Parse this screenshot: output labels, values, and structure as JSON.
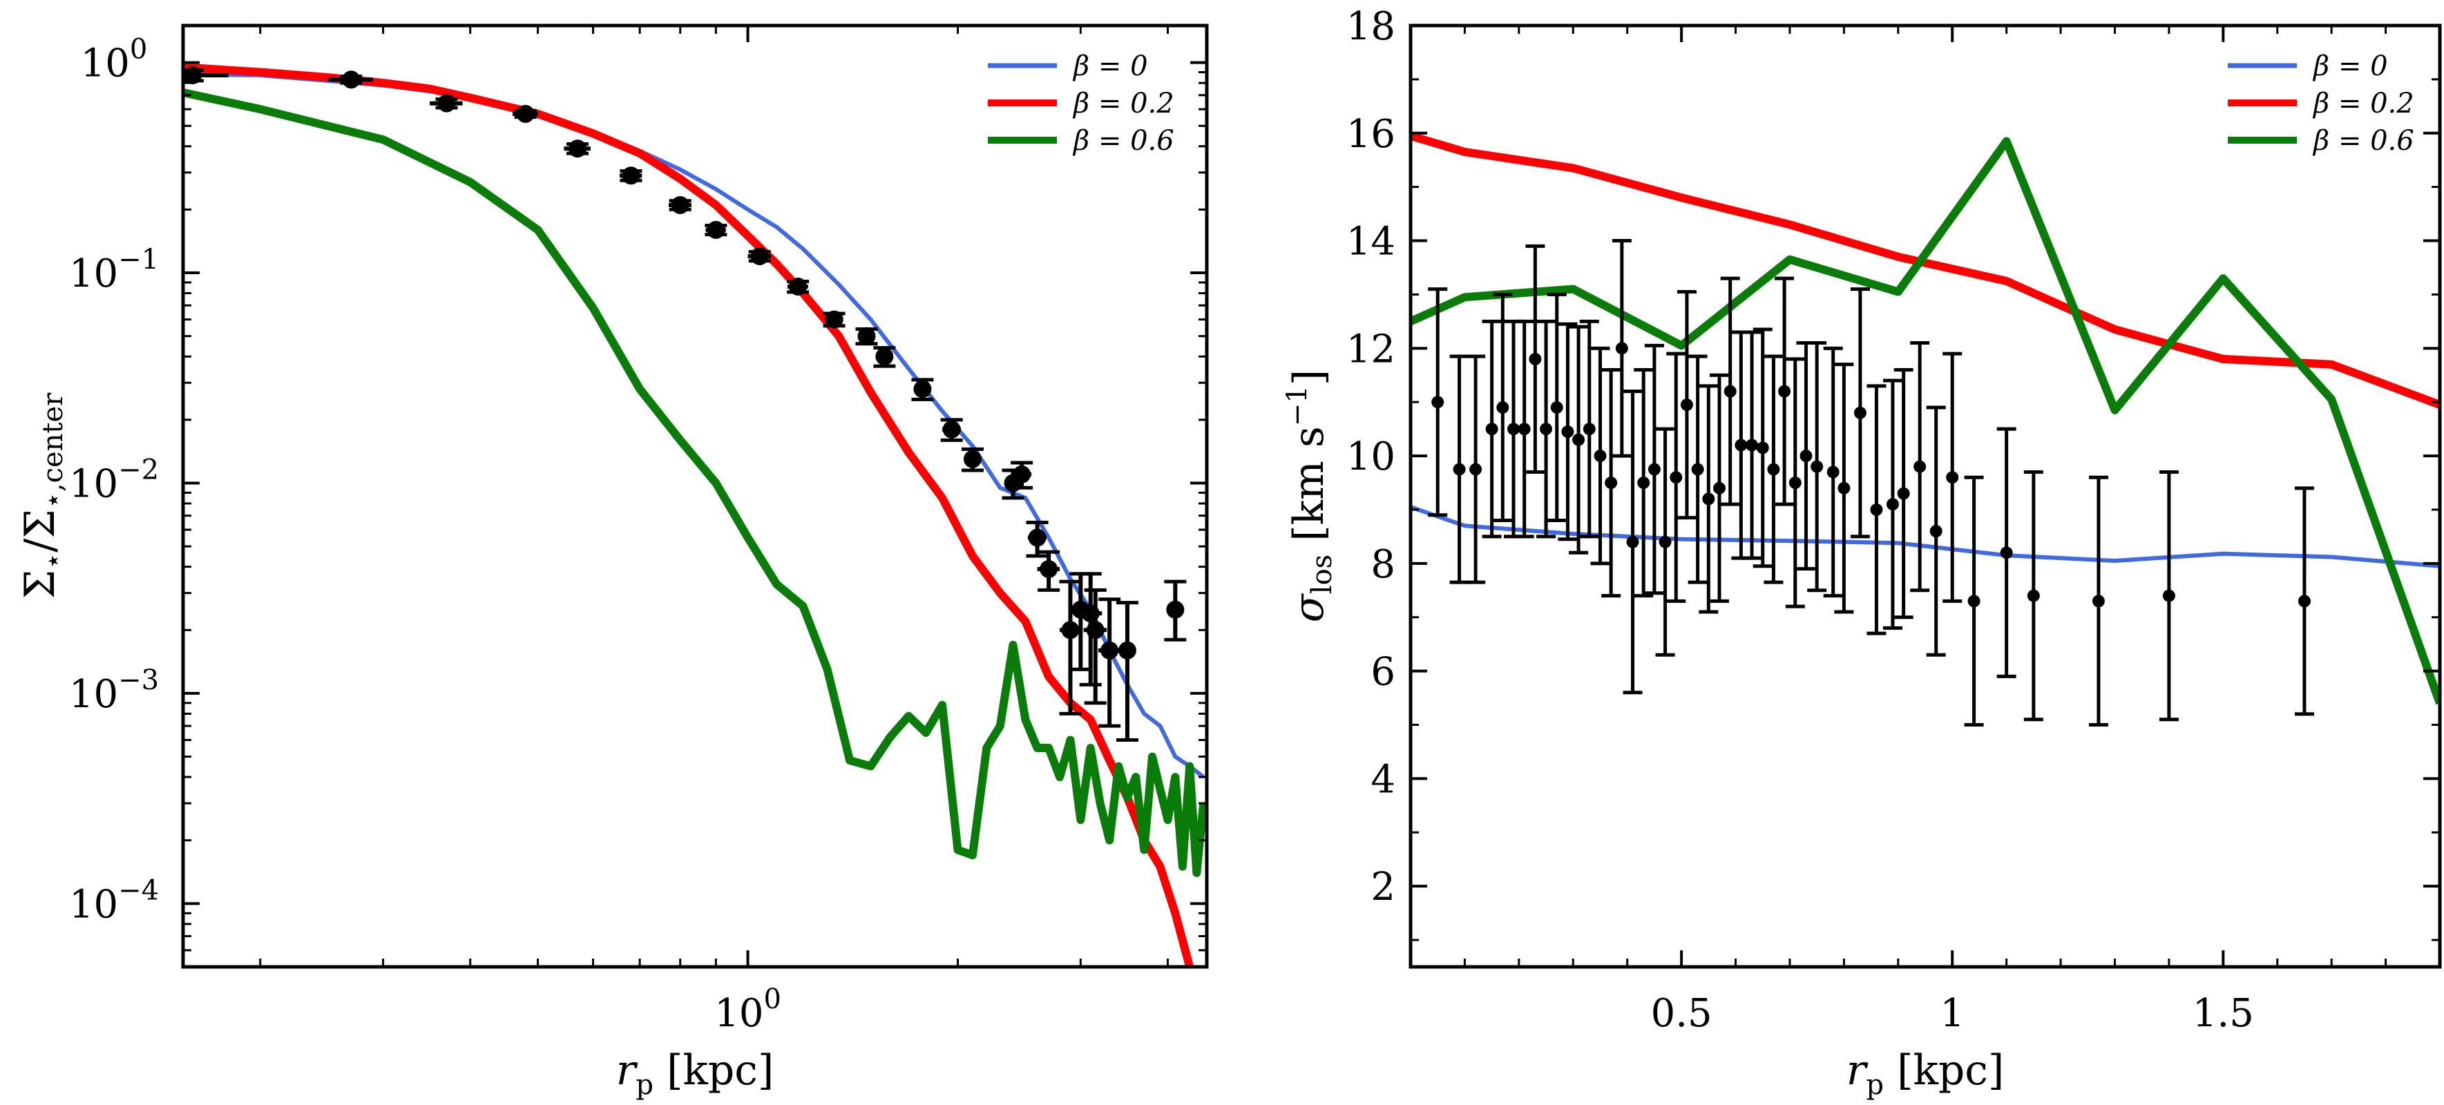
{
  "chart_data": [
    {
      "type": "line",
      "panel": "left",
      "xscale": "log",
      "yscale": "log",
      "xlim": [
        0.155,
        4.55
      ],
      "ylim": [
        5e-05,
        1.5
      ],
      "xlabel": "r_p [kpc]",
      "ylabel": "Σ⋆/Σ⋆,center",
      "xticks": [
        {
          "value": 1.0,
          "label": "10^0"
        }
      ],
      "yticks": [
        {
          "value": 0.0001,
          "label": "10^-4"
        },
        {
          "value": 0.001,
          "label": "10^-3"
        },
        {
          "value": 0.01,
          "label": "10^-2"
        },
        {
          "value": 0.1,
          "label": "10^-1"
        },
        {
          "value": 1.0,
          "label": "10^0"
        }
      ],
      "legend": {
        "position": "top-right",
        "entries": [
          {
            "label": "β = 0",
            "color": "#4169e1"
          },
          {
            "label": "β = 0.2",
            "color": "#ff0000"
          },
          {
            "label": "β = 0.6",
            "color": "#0a7c0a"
          }
        ]
      },
      "series": [
        {
          "name": "β = 0",
          "color": "#4169e1",
          "x": [
            0.155,
            0.2,
            0.3,
            0.4,
            0.5,
            0.6,
            0.7,
            0.8,
            0.9,
            1.0,
            1.1,
            1.2,
            1.35,
            1.5,
            1.7,
            1.9,
            2.1,
            2.3,
            2.5,
            2.7,
            2.9,
            3.1,
            3.3,
            3.5,
            3.7,
            3.9,
            4.1,
            4.3,
            4.5
          ],
          "y": [
            0.88,
            0.87,
            0.78,
            0.69,
            0.58,
            0.47,
            0.38,
            0.31,
            0.25,
            0.2,
            0.165,
            0.13,
            0.088,
            0.06,
            0.035,
            0.022,
            0.015,
            0.0095,
            0.0085,
            0.0055,
            0.0035,
            0.0025,
            0.0016,
            0.0011,
            0.0008,
            0.0007,
            0.0005,
            0.00045,
            0.0004
          ]
        },
        {
          "name": "β = 0.2",
          "color": "#ff0000",
          "x": [
            0.155,
            0.2,
            0.25,
            0.3,
            0.35,
            0.4,
            0.5,
            0.6,
            0.7,
            0.8,
            0.9,
            1.0,
            1.1,
            1.2,
            1.35,
            1.5,
            1.7,
            1.9,
            2.1,
            2.3,
            2.5,
            2.7,
            2.9,
            3.1,
            3.3,
            3.5,
            3.7,
            3.9,
            4.1,
            4.3
          ],
          "y": [
            0.95,
            0.9,
            0.85,
            0.8,
            0.75,
            0.68,
            0.57,
            0.46,
            0.37,
            0.28,
            0.21,
            0.15,
            0.11,
            0.08,
            0.05,
            0.027,
            0.014,
            0.0085,
            0.0045,
            0.003,
            0.0022,
            0.0012,
            0.0009,
            0.00075,
            0.00048,
            0.00032,
            0.0002,
            0.00015,
            9e-05,
            5e-05
          ]
        },
        {
          "name": "β = 0.6",
          "color": "#0a7c0a",
          "x": [
            0.155,
            0.2,
            0.3,
            0.4,
            0.5,
            0.6,
            0.7,
            0.8,
            0.9,
            1.0,
            1.1,
            1.2,
            1.3,
            1.4,
            1.5,
            1.6,
            1.7,
            1.8,
            1.9,
            2.0,
            2.1,
            2.2,
            2.3,
            2.4,
            2.5,
            2.6,
            2.7,
            2.8,
            2.9,
            3.0,
            3.1,
            3.2,
            3.3,
            3.4,
            3.5,
            3.6,
            3.7,
            3.8,
            3.9,
            4.0,
            4.1,
            4.2,
            4.3,
            4.4,
            4.5
          ],
          "y": [
            0.72,
            0.6,
            0.43,
            0.27,
            0.16,
            0.068,
            0.028,
            0.016,
            0.01,
            0.0055,
            0.0033,
            0.0026,
            0.0013,
            0.00048,
            0.00045,
            0.00062,
            0.00078,
            0.00065,
            0.00088,
            0.00018,
            0.00017,
            0.00055,
            0.0007,
            0.0017,
            0.00075,
            0.00055,
            0.00055,
            0.0004,
            0.0006,
            0.00025,
            0.00055,
            0.0003,
            0.0002,
            0.00045,
            0.00032,
            0.0004,
            0.00018,
            0.0005,
            0.00035,
            0.00025,
            0.0004,
            0.00015,
            0.00045,
            0.00014,
            0.0003
          ]
        }
      ],
      "points": {
        "x": [
          0.16,
          0.27,
          0.37,
          0.48,
          0.57,
          0.68,
          0.8,
          0.9,
          1.04,
          1.18,
          1.33,
          1.48,
          1.57,
          1.78,
          1.96,
          2.1,
          2.4,
          2.47,
          2.6,
          2.7,
          2.9,
          3.0,
          3.1,
          3.15,
          3.3,
          3.5,
          4.1
        ],
        "y": [
          0.87,
          0.83,
          0.64,
          0.57,
          0.39,
          0.29,
          0.21,
          0.16,
          0.12,
          0.086,
          0.06,
          0.05,
          0.04,
          0.028,
          0.018,
          0.013,
          0.01,
          0.011,
          0.0055,
          0.0039,
          0.002,
          0.0025,
          0.0024,
          0.002,
          0.0016,
          0.0016,
          0.0025
        ],
        "x_err": [
          0.02,
          0.02,
          0.02,
          0.02,
          0.025,
          0.025,
          0.03,
          0.03,
          0.04,
          0.04,
          0.04,
          0.04,
          0.04,
          0.05,
          0.06,
          0.05,
          0.06,
          0.08,
          0.08,
          0.1,
          0.1,
          0.1,
          0.12,
          0.12,
          0.12,
          0.1,
          0.1
        ],
        "y_err_low": [
          0.05,
          0.03,
          0.03,
          0.02,
          0.02,
          0.015,
          0.01,
          0.008,
          0.006,
          0.005,
          0.004,
          0.004,
          0.004,
          0.003,
          0.002,
          0.0015,
          0.0015,
          0.0015,
          0.001,
          0.0008,
          0.0012,
          0.0012,
          0.0013,
          0.0011,
          0.0009,
          0.001,
          0.0007
        ],
        "y_err_high": [
          0.05,
          0.03,
          0.03,
          0.02,
          0.02,
          0.015,
          0.01,
          0.008,
          0.006,
          0.005,
          0.004,
          0.004,
          0.004,
          0.003,
          0.002,
          0.0015,
          0.0015,
          0.0015,
          0.001,
          0.0008,
          0.0014,
          0.0012,
          0.0013,
          0.0011,
          0.0012,
          0.0011,
          0.0009
        ],
        "color": "#000000"
      }
    },
    {
      "type": "line",
      "panel": "right",
      "xscale": "linear",
      "yscale": "linear",
      "xlim": [
        0.0,
        1.9
      ],
      "ylim": [
        0.5,
        18.0
      ],
      "xlabel": "r_p [kpc]",
      "ylabel": "σ_los [km s^-1]",
      "xticks": [
        {
          "value": 0.5,
          "label": "0.5"
        },
        {
          "value": 1.0,
          "label": "1"
        },
        {
          "value": 1.5,
          "label": "1.5"
        }
      ],
      "yticks": [
        {
          "value": 2,
          "label": "2"
        },
        {
          "value": 4,
          "label": "4"
        },
        {
          "value": 6,
          "label": "6"
        },
        {
          "value": 8,
          "label": "8"
        },
        {
          "value": 10,
          "label": "10"
        },
        {
          "value": 12,
          "label": "12"
        },
        {
          "value": 14,
          "label": "14"
        },
        {
          "value": 16,
          "label": "16"
        },
        {
          "value": 18,
          "label": "18"
        }
      ],
      "legend": {
        "position": "top-right",
        "entries": [
          {
            "label": "β = 0",
            "color": "#4169e1"
          },
          {
            "label": "β = 0.2",
            "color": "#ff0000"
          },
          {
            "label": "β = 0.6",
            "color": "#0a7c0a"
          }
        ]
      },
      "series": [
        {
          "name": "β = 0",
          "color": "#4169e1",
          "x": [
            0.0,
            0.1,
            0.3,
            0.5,
            0.7,
            0.9,
            1.1,
            1.3,
            1.5,
            1.7,
            1.9
          ],
          "y": [
            9.05,
            8.7,
            8.55,
            8.45,
            8.42,
            8.38,
            8.15,
            8.05,
            8.18,
            8.12,
            7.95
          ]
        },
        {
          "name": "β = 0.2",
          "color": "#ff0000",
          "x": [
            0.0,
            0.1,
            0.3,
            0.5,
            0.7,
            0.9,
            1.1,
            1.3,
            1.5,
            1.7,
            1.9
          ],
          "y": [
            15.95,
            15.65,
            15.35,
            14.8,
            14.3,
            13.7,
            13.25,
            12.35,
            11.8,
            11.7,
            10.95
          ]
        },
        {
          "name": "β = 0.6",
          "color": "#0a7c0a",
          "x": [
            0.0,
            0.1,
            0.3,
            0.5,
            0.7,
            0.9,
            1.1,
            1.3,
            1.5,
            1.7,
            1.9
          ],
          "y": [
            12.5,
            12.95,
            13.1,
            12.05,
            13.65,
            13.05,
            15.85,
            10.85,
            13.3,
            11.05,
            5.4
          ]
        }
      ],
      "points": {
        "x": [
          0.05,
          0.09,
          0.12,
          0.15,
          0.17,
          0.19,
          0.21,
          0.23,
          0.25,
          0.27,
          0.29,
          0.31,
          0.33,
          0.35,
          0.37,
          0.39,
          0.41,
          0.43,
          0.45,
          0.47,
          0.49,
          0.51,
          0.53,
          0.55,
          0.57,
          0.59,
          0.61,
          0.63,
          0.65,
          0.67,
          0.69,
          0.71,
          0.73,
          0.75,
          0.78,
          0.8,
          0.83,
          0.86,
          0.89,
          0.91,
          0.94,
          0.97,
          1.0,
          1.04,
          1.1,
          1.15,
          1.27,
          1.4,
          1.65
        ],
        "y": [
          11.0,
          9.75,
          9.75,
          10.5,
          10.9,
          10.5,
          10.5,
          11.8,
          10.5,
          10.9,
          10.45,
          10.3,
          10.5,
          10.0,
          9.5,
          12.0,
          8.4,
          9.5,
          9.75,
          8.4,
          9.6,
          10.95,
          9.75,
          9.2,
          9.4,
          11.2,
          10.2,
          10.2,
          10.15,
          9.75,
          11.2,
          9.5,
          10.0,
          9.8,
          9.7,
          9.4,
          10.8,
          9.0,
          9.1,
          9.3,
          9.8,
          8.6,
          9.6,
          7.3,
          8.2,
          7.4,
          7.3,
          7.4,
          7.3
        ],
        "y_err": [
          2.1,
          2.1,
          2.1,
          2.0,
          2.1,
          2.0,
          2.0,
          2.1,
          2.0,
          2.1,
          2.0,
          2.1,
          2.0,
          2.0,
          2.1,
          2.0,
          2.8,
          2.1,
          2.3,
          2.1,
          2.3,
          2.1,
          2.1,
          2.1,
          2.1,
          2.1,
          2.1,
          2.1,
          2.2,
          2.1,
          2.1,
          2.3,
          2.1,
          2.3,
          2.3,
          2.3,
          2.3,
          2.3,
          2.3,
          2.3,
          2.3,
          2.3,
          2.3,
          2.3,
          2.3,
          2.3,
          2.3,
          2.3,
          2.1
        ],
        "color": "#000000"
      }
    }
  ]
}
